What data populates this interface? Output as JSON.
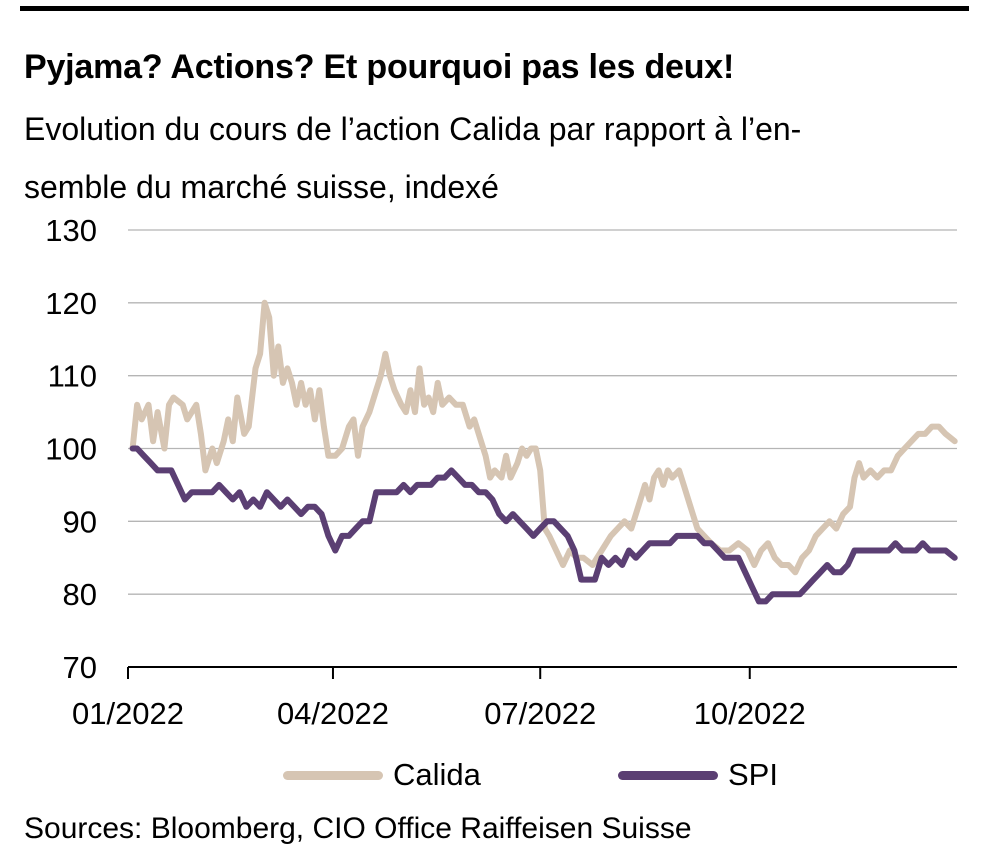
{
  "title": "Pyjama? Actions? Et pourquoi pas les deux!",
  "subtitle_line1": "Evolution du cours de l’action Calida par rapport à l’en-",
  "subtitle_line2": "semble du marché suisse, indexé",
  "source": "Sources: Bloomberg, CIO Office Raiffeisen Suisse",
  "colors": {
    "calida": "#d6c5b3",
    "spi": "#5b3f73",
    "grid": "#b5b5b5",
    "axis": "#000000"
  },
  "chart_data": {
    "type": "line",
    "title": "Pyjama? Actions? Et pourquoi pas les deux!",
    "xlabel": "",
    "ylabel": "",
    "ylim": [
      70,
      130
    ],
    "yticks": [
      70,
      80,
      90,
      100,
      110,
      120,
      130
    ],
    "xlim": [
      "2022-01-01",
      "2022-12-31"
    ],
    "xticks": [
      {
        "date": "2022-01-01",
        "label": "01/2022"
      },
      {
        "date": "2022-04-01",
        "label": "04/2022"
      },
      {
        "date": "2022-07-01",
        "label": "07/2022"
      },
      {
        "date": "2022-10-01",
        "label": "10/2022"
      }
    ],
    "grid": "horizontal",
    "legend_position": "bottom",
    "series": [
      {
        "name": "Calida",
        "color": "#d6c5b3",
        "points": [
          [
            "2022-01-03",
            100
          ],
          [
            "2022-01-05",
            106
          ],
          [
            "2022-01-07",
            104
          ],
          [
            "2022-01-10",
            106
          ],
          [
            "2022-01-12",
            101
          ],
          [
            "2022-01-14",
            105
          ],
          [
            "2022-01-17",
            100
          ],
          [
            "2022-01-19",
            106
          ],
          [
            "2022-01-21",
            107
          ],
          [
            "2022-01-25",
            106
          ],
          [
            "2022-01-27",
            104
          ],
          [
            "2022-01-31",
            106
          ],
          [
            "2022-02-02",
            102
          ],
          [
            "2022-02-04",
            97
          ],
          [
            "2022-02-07",
            100
          ],
          [
            "2022-02-09",
            98
          ],
          [
            "2022-02-12",
            101
          ],
          [
            "2022-02-14",
            104
          ],
          [
            "2022-02-16",
            101
          ],
          [
            "2022-02-18",
            107
          ],
          [
            "2022-02-21",
            102
          ],
          [
            "2022-02-23",
            103
          ],
          [
            "2022-02-26",
            111
          ],
          [
            "2022-02-28",
            113
          ],
          [
            "2022-03-02",
            120
          ],
          [
            "2022-03-04",
            118
          ],
          [
            "2022-03-06",
            110
          ],
          [
            "2022-03-08",
            114
          ],
          [
            "2022-03-10",
            109
          ],
          [
            "2022-03-12",
            111
          ],
          [
            "2022-03-14",
            109
          ],
          [
            "2022-03-16",
            106
          ],
          [
            "2022-03-18",
            109
          ],
          [
            "2022-03-20",
            106
          ],
          [
            "2022-03-22",
            108
          ],
          [
            "2022-03-24",
            104
          ],
          [
            "2022-03-26",
            108
          ],
          [
            "2022-03-28",
            103
          ],
          [
            "2022-03-30",
            99
          ],
          [
            "2022-04-02",
            99
          ],
          [
            "2022-04-05",
            100
          ],
          [
            "2022-04-08",
            103
          ],
          [
            "2022-04-10",
            104
          ],
          [
            "2022-04-12",
            99
          ],
          [
            "2022-04-14",
            103
          ],
          [
            "2022-04-17",
            105
          ],
          [
            "2022-04-20",
            108
          ],
          [
            "2022-04-22",
            110
          ],
          [
            "2022-04-24",
            113
          ],
          [
            "2022-04-26",
            110
          ],
          [
            "2022-04-28",
            108
          ],
          [
            "2022-05-01",
            106
          ],
          [
            "2022-05-03",
            105
          ],
          [
            "2022-05-05",
            108
          ],
          [
            "2022-05-07",
            105
          ],
          [
            "2022-05-09",
            111
          ],
          [
            "2022-05-11",
            106
          ],
          [
            "2022-05-13",
            107
          ],
          [
            "2022-05-15",
            105
          ],
          [
            "2022-05-17",
            109
          ],
          [
            "2022-05-19",
            106
          ],
          [
            "2022-05-22",
            107
          ],
          [
            "2022-05-25",
            106
          ],
          [
            "2022-05-28",
            106
          ],
          [
            "2022-05-31",
            103
          ],
          [
            "2022-06-02",
            104
          ],
          [
            "2022-06-05",
            101
          ],
          [
            "2022-06-07",
            99
          ],
          [
            "2022-06-09",
            96
          ],
          [
            "2022-06-11",
            97
          ],
          [
            "2022-06-14",
            96
          ],
          [
            "2022-06-16",
            99
          ],
          [
            "2022-06-18",
            96
          ],
          [
            "2022-06-21",
            98
          ],
          [
            "2022-06-23",
            100
          ],
          [
            "2022-06-25",
            99
          ],
          [
            "2022-06-27",
            100
          ],
          [
            "2022-06-29",
            100
          ],
          [
            "2022-07-01",
            97
          ],
          [
            "2022-07-03",
            89
          ],
          [
            "2022-07-05",
            88
          ],
          [
            "2022-07-08",
            86
          ],
          [
            "2022-07-11",
            84
          ],
          [
            "2022-07-14",
            86
          ],
          [
            "2022-07-17",
            85
          ],
          [
            "2022-07-20",
            85
          ],
          [
            "2022-07-24",
            84
          ],
          [
            "2022-07-28",
            86
          ],
          [
            "2022-08-01",
            88
          ],
          [
            "2022-08-04",
            89
          ],
          [
            "2022-08-07",
            90
          ],
          [
            "2022-08-10",
            89
          ],
          [
            "2022-08-13",
            92
          ],
          [
            "2022-08-16",
            95
          ],
          [
            "2022-08-18",
            93
          ],
          [
            "2022-08-20",
            96
          ],
          [
            "2022-08-22",
            97
          ],
          [
            "2022-08-24",
            95
          ],
          [
            "2022-08-26",
            97
          ],
          [
            "2022-08-28",
            96
          ],
          [
            "2022-08-31",
            97
          ],
          [
            "2022-09-02",
            95
          ],
          [
            "2022-09-05",
            92
          ],
          [
            "2022-09-08",
            89
          ],
          [
            "2022-09-11",
            88
          ],
          [
            "2022-09-14",
            87
          ],
          [
            "2022-09-18",
            86
          ],
          [
            "2022-09-22",
            86
          ],
          [
            "2022-09-26",
            87
          ],
          [
            "2022-09-30",
            86
          ],
          [
            "2022-10-03",
            84
          ],
          [
            "2022-10-06",
            86
          ],
          [
            "2022-10-09",
            87
          ],
          [
            "2022-10-12",
            85
          ],
          [
            "2022-10-15",
            84
          ],
          [
            "2022-10-18",
            84
          ],
          [
            "2022-10-21",
            83
          ],
          [
            "2022-10-24",
            85
          ],
          [
            "2022-10-27",
            86
          ],
          [
            "2022-10-30",
            88
          ],
          [
            "2022-11-02",
            89
          ],
          [
            "2022-11-05",
            90
          ],
          [
            "2022-11-08",
            89
          ],
          [
            "2022-11-11",
            91
          ],
          [
            "2022-11-14",
            92
          ],
          [
            "2022-11-16",
            96
          ],
          [
            "2022-11-18",
            98
          ],
          [
            "2022-11-20",
            96
          ],
          [
            "2022-11-23",
            97
          ],
          [
            "2022-11-26",
            96
          ],
          [
            "2022-11-29",
            97
          ],
          [
            "2022-12-02",
            97
          ],
          [
            "2022-12-05",
            99
          ],
          [
            "2022-12-08",
            100
          ],
          [
            "2022-12-11",
            101
          ],
          [
            "2022-12-14",
            102
          ],
          [
            "2022-12-17",
            102
          ],
          [
            "2022-12-20",
            103
          ],
          [
            "2022-12-23",
            103
          ],
          [
            "2022-12-26",
            102
          ],
          [
            "2022-12-30",
            101
          ]
        ]
      },
      {
        "name": "SPI",
        "color": "#5b3f73",
        "points": [
          [
            "2022-01-03",
            100
          ],
          [
            "2022-01-05",
            100
          ],
          [
            "2022-01-08",
            99
          ],
          [
            "2022-01-11",
            98
          ],
          [
            "2022-01-14",
            97
          ],
          [
            "2022-01-17",
            97
          ],
          [
            "2022-01-20",
            97
          ],
          [
            "2022-01-23",
            95
          ],
          [
            "2022-01-26",
            93
          ],
          [
            "2022-01-29",
            94
          ],
          [
            "2022-02-01",
            94
          ],
          [
            "2022-02-04",
            94
          ],
          [
            "2022-02-07",
            94
          ],
          [
            "2022-02-10",
            95
          ],
          [
            "2022-02-13",
            94
          ],
          [
            "2022-02-16",
            93
          ],
          [
            "2022-02-19",
            94
          ],
          [
            "2022-02-22",
            92
          ],
          [
            "2022-02-25",
            93
          ],
          [
            "2022-02-28",
            92
          ],
          [
            "2022-03-03",
            94
          ],
          [
            "2022-03-06",
            93
          ],
          [
            "2022-03-09",
            92
          ],
          [
            "2022-03-12",
            93
          ],
          [
            "2022-03-15",
            92
          ],
          [
            "2022-03-18",
            91
          ],
          [
            "2022-03-21",
            92
          ],
          [
            "2022-03-24",
            92
          ],
          [
            "2022-03-27",
            91
          ],
          [
            "2022-03-30",
            88
          ],
          [
            "2022-04-02",
            86
          ],
          [
            "2022-04-05",
            88
          ],
          [
            "2022-04-08",
            88
          ],
          [
            "2022-04-11",
            89
          ],
          [
            "2022-04-14",
            90
          ],
          [
            "2022-04-17",
            90
          ],
          [
            "2022-04-20",
            94
          ],
          [
            "2022-04-23",
            94
          ],
          [
            "2022-04-26",
            94
          ],
          [
            "2022-04-29",
            94
          ],
          [
            "2022-05-02",
            95
          ],
          [
            "2022-05-05",
            94
          ],
          [
            "2022-05-08",
            95
          ],
          [
            "2022-05-11",
            95
          ],
          [
            "2022-05-14",
            95
          ],
          [
            "2022-05-17",
            96
          ],
          [
            "2022-05-20",
            96
          ],
          [
            "2022-05-23",
            97
          ],
          [
            "2022-05-26",
            96
          ],
          [
            "2022-05-29",
            95
          ],
          [
            "2022-06-01",
            95
          ],
          [
            "2022-06-04",
            94
          ],
          [
            "2022-06-07",
            94
          ],
          [
            "2022-06-10",
            93
          ],
          [
            "2022-06-13",
            91
          ],
          [
            "2022-06-16",
            90
          ],
          [
            "2022-06-19",
            91
          ],
          [
            "2022-06-22",
            90
          ],
          [
            "2022-06-25",
            89
          ],
          [
            "2022-06-28",
            88
          ],
          [
            "2022-07-01",
            89
          ],
          [
            "2022-07-04",
            90
          ],
          [
            "2022-07-07",
            90
          ],
          [
            "2022-07-10",
            89
          ],
          [
            "2022-07-13",
            88
          ],
          [
            "2022-07-16",
            86
          ],
          [
            "2022-07-19",
            82
          ],
          [
            "2022-07-22",
            82
          ],
          [
            "2022-07-25",
            82
          ],
          [
            "2022-07-28",
            85
          ],
          [
            "2022-07-31",
            84
          ],
          [
            "2022-08-03",
            85
          ],
          [
            "2022-08-06",
            84
          ],
          [
            "2022-08-09",
            86
          ],
          [
            "2022-08-12",
            85
          ],
          [
            "2022-08-15",
            86
          ],
          [
            "2022-08-18",
            87
          ],
          [
            "2022-08-21",
            87
          ],
          [
            "2022-08-24",
            87
          ],
          [
            "2022-08-27",
            87
          ],
          [
            "2022-08-30",
            88
          ],
          [
            "2022-09-02",
            88
          ],
          [
            "2022-09-05",
            88
          ],
          [
            "2022-09-08",
            88
          ],
          [
            "2022-09-11",
            87
          ],
          [
            "2022-09-14",
            87
          ],
          [
            "2022-09-17",
            86
          ],
          [
            "2022-09-20",
            85
          ],
          [
            "2022-09-23",
            85
          ],
          [
            "2022-09-26",
            85
          ],
          [
            "2022-09-29",
            83
          ],
          [
            "2022-10-02",
            81
          ],
          [
            "2022-10-05",
            79
          ],
          [
            "2022-10-08",
            79
          ],
          [
            "2022-10-11",
            80
          ],
          [
            "2022-10-14",
            80
          ],
          [
            "2022-10-17",
            80
          ],
          [
            "2022-10-20",
            80
          ],
          [
            "2022-10-23",
            80
          ],
          [
            "2022-10-26",
            81
          ],
          [
            "2022-10-29",
            82
          ],
          [
            "2022-11-01",
            83
          ],
          [
            "2022-11-04",
            84
          ],
          [
            "2022-11-07",
            83
          ],
          [
            "2022-11-10",
            83
          ],
          [
            "2022-11-13",
            84
          ],
          [
            "2022-11-16",
            86
          ],
          [
            "2022-11-19",
            86
          ],
          [
            "2022-11-22",
            86
          ],
          [
            "2022-11-25",
            86
          ],
          [
            "2022-11-28",
            86
          ],
          [
            "2022-12-01",
            86
          ],
          [
            "2022-12-04",
            87
          ],
          [
            "2022-12-07",
            86
          ],
          [
            "2022-12-10",
            86
          ],
          [
            "2022-12-13",
            86
          ],
          [
            "2022-12-16",
            87
          ],
          [
            "2022-12-19",
            86
          ],
          [
            "2022-12-22",
            86
          ],
          [
            "2022-12-26",
            86
          ],
          [
            "2022-12-30",
            85
          ]
        ]
      }
    ]
  }
}
